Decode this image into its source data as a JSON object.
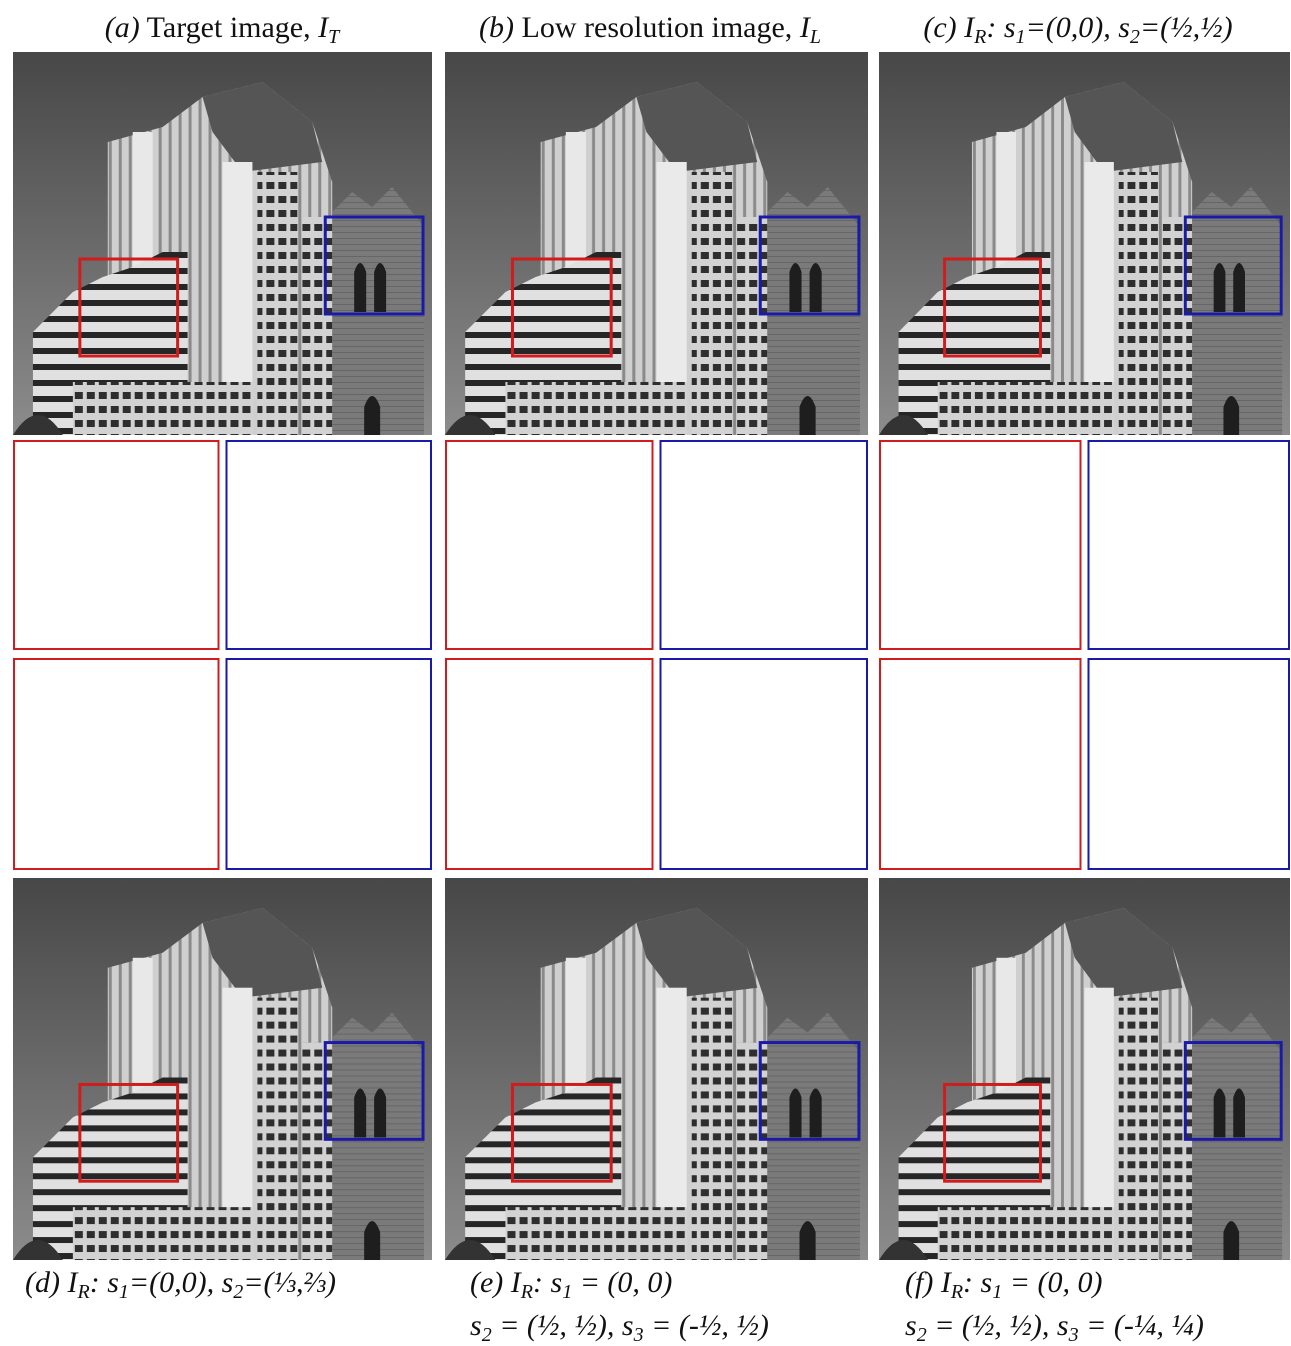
{
  "captions": [
    {
      "lines": [
        [
          {
            "i": "(a)"
          },
          {
            "t": " Target image, "
          },
          {
            "i": "I"
          },
          {
            "sub": "T"
          }
        ]
      ]
    },
    {
      "lines": [
        [
          {
            "i": "(b)"
          },
          {
            "t": " Low resolution image, "
          },
          {
            "i": "I"
          },
          {
            "sub": "L"
          }
        ]
      ]
    },
    {
      "lines": [
        [
          {
            "i": "(c) I"
          },
          {
            "sub": "R"
          },
          {
            "i": ": s"
          },
          {
            "sub": "1"
          },
          {
            "i": "=(0,0), s"
          },
          {
            "sub": "2"
          },
          {
            "i": "=(½,½)"
          }
        ]
      ]
    },
    {
      "lines": [
        [
          {
            "i": "(d) I"
          },
          {
            "sub": "R"
          },
          {
            "i": ": s"
          },
          {
            "sub": "1"
          },
          {
            "i": "=(0,0), s"
          },
          {
            "sub": "2"
          },
          {
            "i": "=(⅓,⅔)"
          }
        ]
      ]
    },
    {
      "lines": [
        [
          {
            "i": "(e) I"
          },
          {
            "sub": "R"
          },
          {
            "i": ": s"
          },
          {
            "sub": "1"
          },
          {
            "i": " = (0, 0)"
          }
        ],
        [
          {
            "i": "s"
          },
          {
            "sub": "2"
          },
          {
            "i": " = (½, ½), s"
          },
          {
            "sub": "3"
          },
          {
            "i": " = (-½, ½)"
          }
        ]
      ]
    },
    {
      "lines": [
        [
          {
            "i": "(f) I"
          },
          {
            "sub": "R"
          },
          {
            "i": ": s"
          },
          {
            "sub": "1"
          },
          {
            "i": " = (0, 0)"
          }
        ],
        [
          {
            "i": "s"
          },
          {
            "sub": "2"
          },
          {
            "i": " = (½, ½), s"
          },
          {
            "sub": "3"
          },
          {
            "i": " = (-¼, ¼)"
          }
        ]
      ]
    }
  ]
}
